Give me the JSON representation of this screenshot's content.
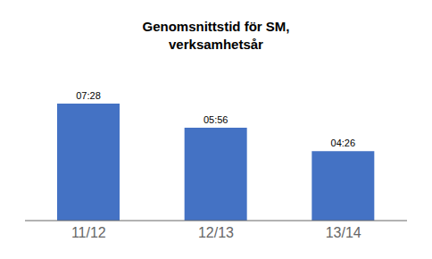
{
  "chart_data": {
    "type": "bar",
    "title": "Genomsnittstid för SM,\nverksamhetsår",
    "categories": [
      "11/12",
      "12/13",
      "13/14"
    ],
    "values": [
      448,
      356,
      266
    ],
    "value_labels": [
      "07:28",
      "05:56",
      "04:26"
    ],
    "color": "#4472C4",
    "ylim": [
      0,
      530
    ],
    "grid": false,
    "data_labels": true,
    "tick_labels": "x"
  }
}
